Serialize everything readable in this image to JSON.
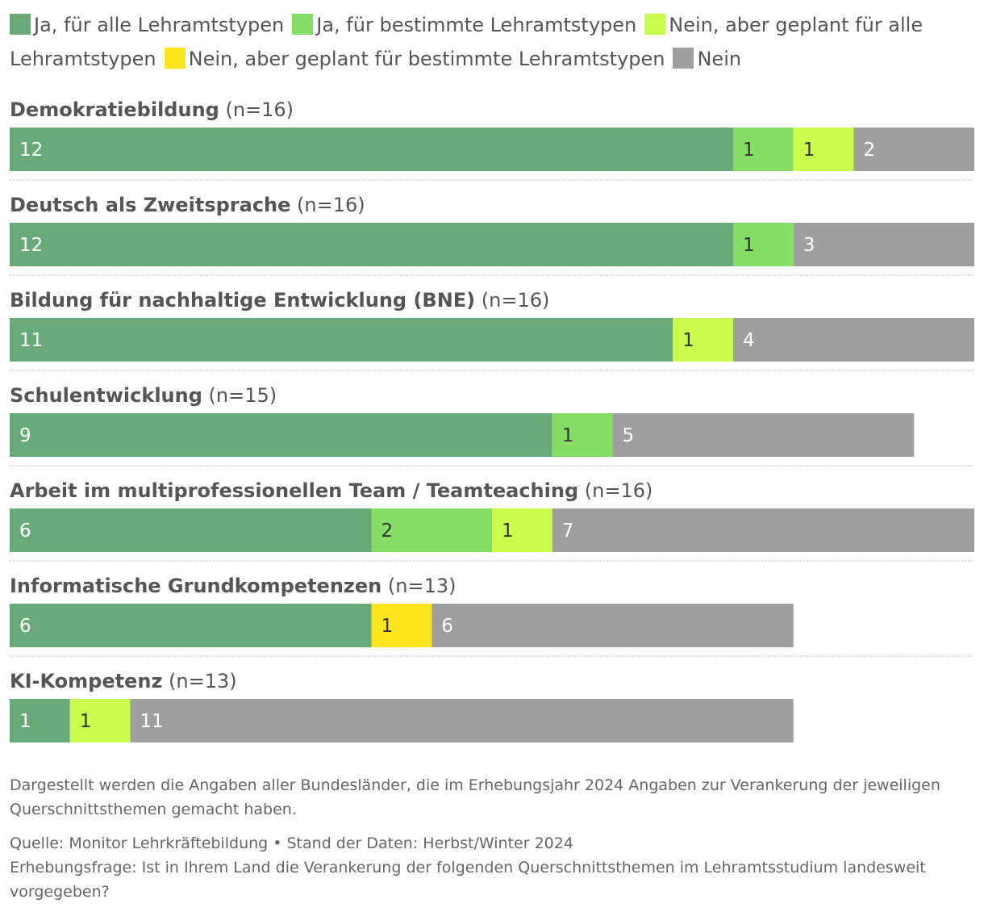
{
  "chart_data": {
    "type": "bar",
    "orientation": "horizontal",
    "stacked": true,
    "legend_placement": "top",
    "categories": [
      {
        "label": "Demokratiebildung",
        "n": "(n=16)"
      },
      {
        "label": "Deutsch als Zweitsprache",
        "n": "(n=16)"
      },
      {
        "label": "Bildung für nachhaltige Entwicklung (BNE)",
        "n": "(n=16)"
      },
      {
        "label": "Schulentwicklung",
        "n": "(n=15)"
      },
      {
        "label": "Arbeit im multiprofessionellen Team / Teamteaching",
        "n": "(n=16)"
      },
      {
        "label": "Informatische Grundkompetenzen",
        "n": "(n=13)"
      },
      {
        "label": "KI-Kompetenz",
        "n": "(n=13)"
      }
    ],
    "series": [
      {
        "name": "Ja, für alle Lehramtstypen",
        "color": "#6aaa78",
        "label_color": "#ffffff",
        "values": [
          12,
          12,
          11,
          9,
          6,
          6,
          1
        ]
      },
      {
        "name": "Ja, für bestimmte Lehramtstypen",
        "color": "#84de66",
        "label_color": "#333333",
        "values": [
          1,
          1,
          0,
          1,
          2,
          0,
          0
        ]
      },
      {
        "name": "Nein, aber geplant für alle Lehramtstypen",
        "color": "#c9fc4c",
        "label_color": "#333333",
        "values": [
          1,
          0,
          1,
          0,
          1,
          0,
          1
        ]
      },
      {
        "name": "Nein, aber geplant für bestimmte Lehramtstypen",
        "color": "#ffe51e",
        "label_color": "#333333",
        "values": [
          0,
          0,
          0,
          0,
          0,
          1,
          0
        ]
      },
      {
        "name": "Nein",
        "color": "#9f9f9f",
        "label_color": "#ffffff",
        "values": [
          2,
          3,
          4,
          5,
          7,
          6,
          11
        ]
      }
    ],
    "xlim": [
      0,
      16
    ],
    "grid": false
  },
  "footer": {
    "note": "Dargestellt werden die Angaben aller Bundesländer, die im Erhebungsjahr 2024 Angaben zur Verankerung der jeweiligen Querschnittsthemen gemacht haben.",
    "source": "Quelle: Monitor Lehrkräftebildung • Stand der Daten: Herbst/Winter 2024",
    "question": "Erhebungsfrage: Ist in Ihrem Land die Verankerung der folgenden Querschnittsthemen im Lehramtsstudium landesweit vorgegeben?"
  }
}
